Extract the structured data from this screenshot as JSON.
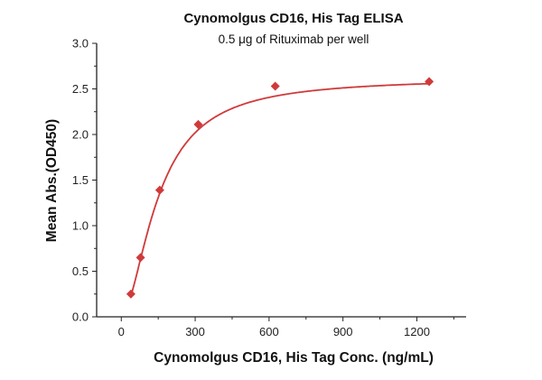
{
  "chart_data": {
    "type": "scatter",
    "title": "Cynomolgus CD16, His Tag ELISA",
    "subtitle": "0.5 μg of Rituximab per well",
    "xlabel": "Cynomolgus CD16, His Tag Conc. (ng/mL)",
    "ylabel": "Mean Abs.(OD450)",
    "xlim": [
      -100,
      1400
    ],
    "ylim": [
      0,
      3.0
    ],
    "x_ticks": [
      "0",
      "300",
      "600",
      "900",
      "1200"
    ],
    "y_ticks": [
      "0.0",
      "0.5",
      "1.0",
      "1.5",
      "2.0",
      "2.5",
      "3.0"
    ],
    "grid": false,
    "marker": "diamond",
    "fit_curve": true,
    "color": "#d03a3a",
    "series": [
      {
        "x": [
          39.06,
          78.13,
          156.25,
          312.5,
          625,
          1250
        ],
        "y": [
          0.25,
          0.65,
          1.39,
          2.11,
          2.53,
          2.58
        ]
      }
    ]
  }
}
